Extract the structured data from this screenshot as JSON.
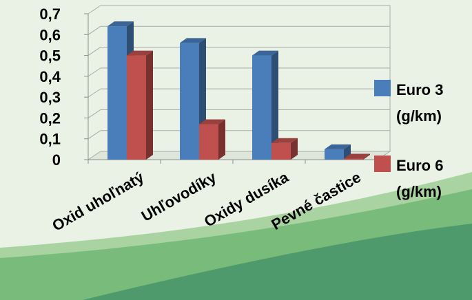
{
  "chart_data": {
    "type": "bar",
    "categories": [
      "Oxid uhoľnatý",
      "Uhľovodíky",
      "Oxidy dusíka",
      "Pevné častice"
    ],
    "series": [
      {
        "name": "Euro 3 (g/km)",
        "name_lines": [
          "Euro 3",
          "(g/km)"
        ],
        "color": "#4a7ebb",
        "values": [
          0.64,
          0.56,
          0.5,
          0.05
        ]
      },
      {
        "name": "Euro 6 (g/km)",
        "name_lines": [
          "Euro 6",
          "(g/km)"
        ],
        "color": "#c0504d",
        "values": [
          0.5,
          0.17,
          0.08,
          0.005
        ]
      }
    ],
    "y_ticks": [
      "0",
      "0,1",
      "0,2",
      "0,3",
      "0,4",
      "0,5",
      "0,6",
      "0,7"
    ],
    "ylim": [
      0,
      0.7
    ],
    "grid": true,
    "legend": "right",
    "title": "",
    "xlabel": "",
    "ylabel": ""
  },
  "background": {
    "colors": {
      "base": "#e9f2e4",
      "wave_light": "#a9d3a0",
      "wave_mid": "#79bb7b",
      "wave_dark": "#4f9a6c"
    }
  }
}
